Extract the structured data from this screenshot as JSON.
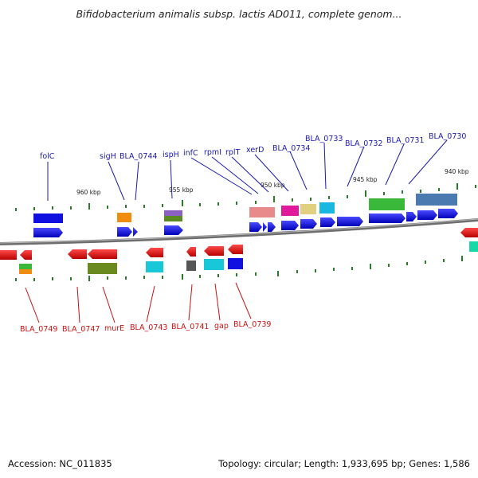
{
  "title": "Bifidobacterium animalis subsp. lactis AD011, complete genom...",
  "tick_labels": [
    "960 kbp",
    "955 kbp",
    "950 kbp",
    "945 kbp",
    "940 kbp"
  ],
  "top_labels": [
    "folC",
    "sigH",
    "BLA_0744",
    "ispH",
    "infC",
    "rpmI",
    "rplT",
    "xerD",
    "BLA_0734",
    "BLA_0733",
    "BLA_0732",
    "BLA_0731",
    "BLA_0730"
  ],
  "bottom_labels": [
    "BLA_0749",
    "BLA_0747",
    "murE",
    "BLA_0743",
    "BLA_0741",
    "gap",
    "BLA_0739"
  ],
  "footer": {
    "accession": "Accession: NC_011835",
    "summary": "Topology: circular; Length: 1,933,695 bp; Genes: 1,586"
  },
  "colors": {
    "forward_strand": "#1010e0",
    "reverse_strand": "#e01010",
    "backbone": "#777777",
    "tick": "#2a7a2a",
    "top_label": "#1a1ab0",
    "bottom_label": "#cc1111"
  }
}
